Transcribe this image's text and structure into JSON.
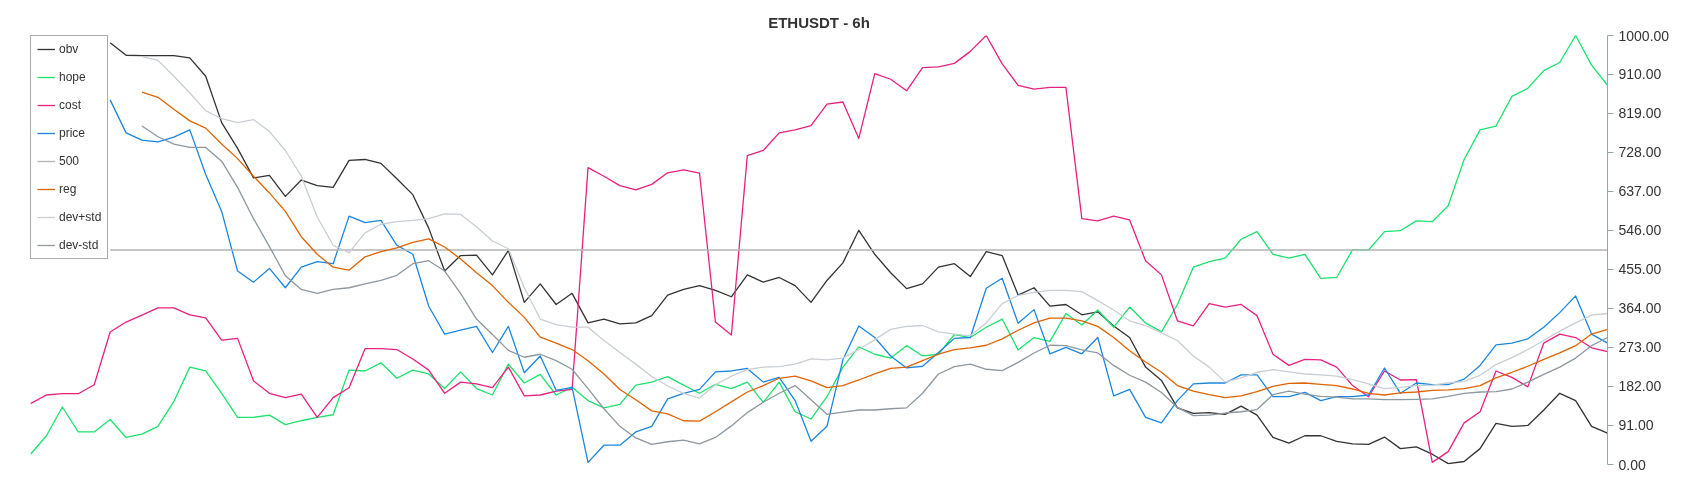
{
  "chart_data": {
    "type": "line",
    "title": "ETHUSDT - 6h",
    "categories": [
      null,
      null,
      null,
      null,
      null,
      null,
      null,
      null,
      null,
      null,
      null,
      null,
      null,
      null,
      null,
      null,
      null,
      null,
      null,
      null,
      null,
      null,
      null,
      null,
      null,
      null,
      null,
      null,
      null,
      null,
      null,
      null,
      null,
      null,
      null,
      null,
      null,
      null,
      null,
      null,
      null,
      null,
      null,
      null,
      null,
      null,
      null,
      null,
      null,
      null,
      null,
      null,
      null,
      null,
      null,
      null,
      null,
      null,
      null,
      null,
      null,
      null,
      null,
      null,
      null,
      null,
      null,
      null,
      null,
      null,
      null,
      null,
      null,
      null,
      null,
      null,
      null,
      null,
      null,
      null,
      null,
      null,
      null,
      null,
      null,
      null,
      null,
      null,
      null,
      null,
      null,
      null,
      null,
      null,
      null,
      null,
      null,
      null,
      null,
      null
    ],
    "ylim": [
      0,
      1000
    ],
    "yticks": [
      {
        "value": 0,
        "label": "0.00"
      },
      {
        "value": 91,
        "label": "91.00"
      },
      {
        "value": 182,
        "label": "182.00"
      },
      {
        "value": 273,
        "label": "273.00"
      },
      {
        "value": 364,
        "label": "364.00"
      },
      {
        "value": 455,
        "label": "455.00"
      },
      {
        "value": 546,
        "label": "546.00"
      },
      {
        "value": 637,
        "label": "637.00"
      },
      {
        "value": 728,
        "label": "728.00"
      },
      {
        "value": 819,
        "label": "819.00"
      },
      {
        "value": 910,
        "label": "910.00"
      },
      {
        "value": 1000,
        "label": "1000.00"
      }
    ],
    "tick_labels": "y",
    "legend": "top left",
    "series": [
      {
        "name": "obv",
        "color": "#333333",
        "values": [
          null,
          null,
          null,
          null,
          null,
          983,
          954,
          953,
          953,
          953,
          948,
          905,
          797,
          737,
          668,
          674,
          625,
          663,
          650,
          646,
          709,
          711,
          702,
          666,
          629,
          551,
          451,
          487,
          488,
          442,
          499,
          378,
          421,
          373,
          399,
          330,
          339,
          328,
          330,
          347,
          395,
          408,
          417,
          406,
          391,
          442,
          425,
          436,
          417,
          378,
          429,
          470,
          546,
          490,
          447,
          410,
          421,
          460,
          468,
          438,
          496,
          487,
          395,
          412,
          369,
          373,
          349,
          356,
          323,
          296,
          227,
          196,
          132,
          119,
          121,
          117,
          136,
          115,
          63,
          50,
          67,
          67,
          54,
          48,
          47,
          64,
          37,
          41,
          24,
          2,
          7,
          37,
          96,
          89,
          91,
          127,
          166,
          149,
          89,
          73
        ]
      },
      {
        "name": "hope",
        "color": "#1de26e",
        "values": [
          24,
          67,
          134,
          76,
          76,
          105,
          63,
          71,
          89,
          147,
          227,
          218,
          166,
          110,
          110,
          115,
          93,
          102,
          110,
          116,
          220,
          218,
          237,
          201,
          220,
          211,
          177,
          216,
          177,
          162,
          234,
          190,
          210,
          162,
          180,
          149,
          132,
          140,
          185,
          192,
          205,
          185,
          166,
          187,
          177,
          192,
          145,
          192,
          123,
          106,
          158,
          227,
          274,
          257,
          248,
          277,
          253,
          257,
          303,
          296,
          320,
          339,
          267,
          296,
          287,
          352,
          325,
          360,
          320,
          367,
          330,
          309,
          373,
          460,
          473,
          481,
          525,
          543,
          490,
          481,
          490,
          434,
          436,
          501,
          500,
          543,
          545,
          568,
          566,
          603,
          711,
          780,
          789,
          858,
          877,
          918,
          937,
          1000,
          931,
          884
        ]
      },
      {
        "name": "cost",
        "color": "#e8207f",
        "values": [
          142,
          162,
          165,
          165,
          186,
          309,
          332,
          348,
          365,
          365,
          349,
          342,
          290,
          294,
          195,
          166,
          156,
          164,
          110,
          156,
          179,
          270,
          270,
          268,
          246,
          220,
          166,
          192,
          188,
          179,
          227,
          160,
          162,
          171,
          175,
          692,
          672,
          650,
          640,
          653,
          680,
          687,
          679,
          332,
          302,
          720,
          732,
          773,
          780,
          790,
          840,
          845,
          760,
          911,
          898,
          871,
          925,
          927,
          935,
          963,
          1000,
          934,
          884,
          875,
          879,
          879,
          573,
          568,
          579,
          570,
          475,
          442,
          335,
          323,
          375,
          367,
          373,
          347,
          257,
          231,
          245,
          244,
          227,
          184,
          158,
          218,
          197,
          198,
          5,
          30,
          97,
          123,
          218,
          203,
          181,
          283,
          304,
          296,
          272,
          263
        ]
      },
      {
        "name": "price",
        "color": "#1a86e0",
        "values": [
          null,
          null,
          null,
          null,
          null,
          850,
          773,
          756,
          752,
          763,
          780,
          676,
          590,
          451,
          425,
          457,
          412,
          460,
          473,
          468,
          579,
          564,
          569,
          511,
          490,
          369,
          304,
          313,
          322,
          261,
          322,
          214,
          253,
          173,
          180,
          5,
          45,
          45,
          76,
          89,
          153,
          166,
          175,
          216,
          218,
          224,
          192,
          203,
          149,
          54,
          89,
          244,
          323,
          296,
          253,
          225,
          229,
          261,
          294,
          296,
          411,
          434,
          329,
          361,
          258,
          273,
          258,
          296,
          160,
          175,
          110,
          97,
          149,
          188,
          190,
          190,
          209,
          209,
          158,
          158,
          168,
          149,
          158,
          158,
          162,
          225,
          166,
          190,
          186,
          186,
          199,
          231,
          279,
          283,
          293,
          320,
          354,
          393,
          304,
          283
        ]
      },
      {
        "name": "500",
        "color": "#b5b5b5",
        "values": [
          null,
          null,
          null,
          null,
          null,
          500,
          500,
          500,
          500,
          500,
          500,
          500,
          500,
          500,
          500,
          500,
          500,
          500,
          500,
          500,
          500,
          500,
          500,
          500,
          500,
          500,
          500,
          500,
          500,
          500,
          500,
          500,
          500,
          500,
          500,
          500,
          500,
          500,
          500,
          500,
          500,
          500,
          500,
          500,
          500,
          500,
          500,
          500,
          500,
          500,
          500,
          500,
          500,
          500,
          500,
          500,
          500,
          500,
          500,
          500,
          500,
          500,
          500,
          500,
          500,
          500,
          500,
          500,
          500,
          500,
          500,
          500,
          500,
          500,
          500,
          500,
          500,
          500,
          500,
          500,
          500,
          500,
          500,
          500,
          500,
          500,
          500,
          500,
          500,
          500,
          500,
          500,
          500,
          500,
          500,
          500,
          500,
          500,
          500,
          500
        ]
      },
      {
        "name": "reg",
        "color": "#e06405",
        "values": [
          null,
          null,
          null,
          null,
          null,
          null,
          null,
          868,
          856,
          828,
          801,
          784,
          747,
          713,
          672,
          633,
          590,
          531,
          490,
          460,
          453,
          484,
          496,
          505,
          518,
          526,
          507,
          479,
          447,
          417,
          378,
          343,
          297,
          283,
          268,
          242,
          211,
          175,
          151,
          125,
          118,
          102,
          101,
          123,
          146,
          169,
          184,
          201,
          206,
          195,
          179,
          184,
          197,
          211,
          224,
          227,
          242,
          257,
          268,
          272,
          278,
          293,
          313,
          330,
          341,
          341,
          335,
          322,
          296,
          265,
          239,
          215,
          184,
          171,
          163,
          156,
          160,
          170,
          182,
          189,
          190,
          187,
          184,
          176,
          166,
          162,
          167,
          169,
          173,
          174,
          177,
          184,
          202,
          215,
          229,
          245,
          260,
          277,
          304,
          315
        ]
      },
      {
        "name": "dev+std",
        "color": "#c9ced3",
        "values": [
          null,
          null,
          null,
          null,
          null,
          null,
          null,
          951,
          942,
          905,
          866,
          825,
          806,
          797,
          804,
          776,
          732,
          672,
          577,
          511,
          494,
          540,
          560,
          566,
          569,
          573,
          584,
          583,
          554,
          521,
          503,
          412,
          339,
          326,
          320,
          320,
          289,
          261,
          234,
          205,
          183,
          166,
          155,
          186,
          206,
          221,
          227,
          228,
          234,
          246,
          244,
          248,
          268,
          291,
          315,
          322,
          324,
          309,
          304,
          300,
          330,
          375,
          394,
          401,
          406,
          406,
          403,
          382,
          360,
          335,
          324,
          307,
          289,
          253,
          227,
          192,
          202,
          215,
          221,
          216,
          211,
          209,
          206,
          198,
          188,
          177,
          180,
          184,
          185,
          190,
          194,
          208,
          233,
          249,
          268,
          289,
          311,
          330,
          348,
          352
        ]
      },
      {
        "name": "dev-std",
        "color": "#8d98a0",
        "values": [
          null,
          null,
          null,
          null,
          null,
          null,
          null,
          789,
          764,
          747,
          739,
          739,
          707,
          646,
          573,
          508,
          440,
          408,
          399,
          408,
          412,
          421,
          429,
          441,
          468,
          475,
          451,
          399,
          339,
          303,
          266,
          250,
          257,
          242,
          222,
          177,
          130,
          89,
          62,
          47,
          53,
          57,
          48,
          63,
          90,
          121,
          145,
          166,
          184,
          151,
          117,
          122,
          127,
          127,
          130,
          132,
          166,
          211,
          228,
          234,
          222,
          219,
          238,
          260,
          278,
          277,
          267,
          260,
          231,
          208,
          192,
          168,
          133,
          114,
          115,
          120,
          123,
          128,
          163,
          171,
          164,
          159,
          157,
          153,
          153,
          151,
          151,
          152,
          153,
          159,
          166,
          169,
          170,
          176,
          192,
          210,
          227,
          248,
          277,
          296
        ]
      }
    ]
  }
}
